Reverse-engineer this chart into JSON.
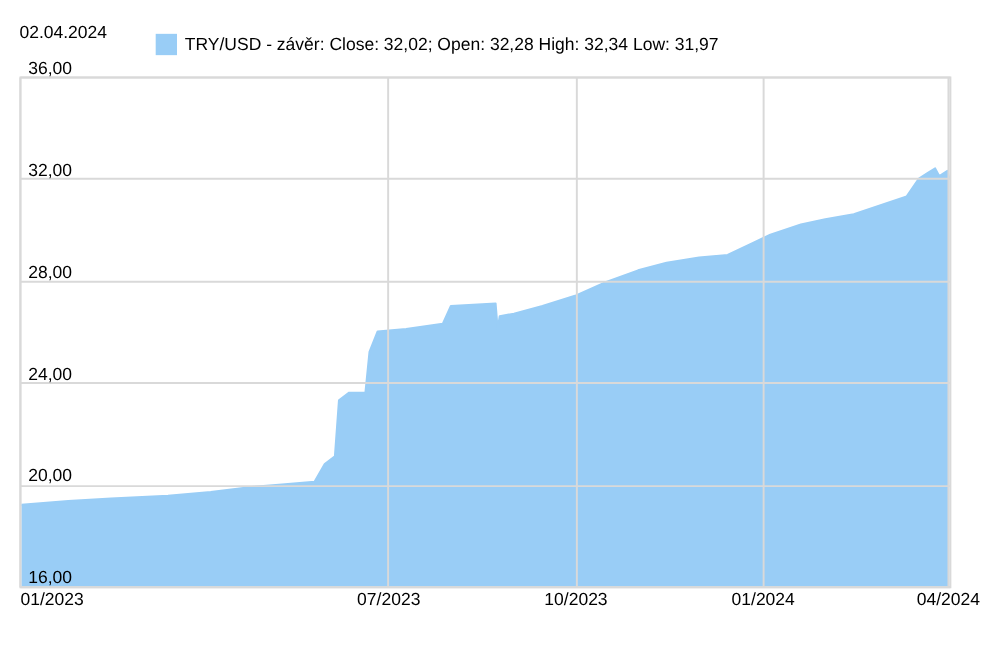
{
  "chart_data": {
    "type": "area",
    "title": "02.04.2024",
    "x": [
      "2023-01-02",
      "2023-01-25",
      "2023-02-15",
      "2023-03-15",
      "2023-04-05",
      "2023-04-25",
      "2023-05-10",
      "2023-05-26",
      "2023-05-31",
      "2023-06-05",
      "2023-06-07",
      "2023-06-12",
      "2023-06-20",
      "2023-06-22",
      "2023-06-26",
      "2023-07-10",
      "2023-07-28",
      "2023-08-01",
      "2023-08-23",
      "2023-08-24",
      "2023-08-25",
      "2023-09-01",
      "2023-09-15",
      "2023-10-01",
      "2023-10-15",
      "2023-11-01",
      "2023-11-15",
      "2023-12-01",
      "2023-12-15",
      "2023-12-28",
      "2024-01-05",
      "2024-01-20",
      "2024-02-01",
      "2024-02-15",
      "2024-03-01",
      "2024-03-12",
      "2024-03-18",
      "2024-03-22",
      "2024-03-26",
      "2024-03-28",
      "2024-04-01",
      "2024-04-02"
    ],
    "series": [
      {
        "name": "TRY/USD - závěr: Close: 32,02; Open: 32,28 High: 32,34 Low: 31,97",
        "color": "#99cdf6",
        "values": [
          19.2,
          19.35,
          19.45,
          19.55,
          19.7,
          19.9,
          20.0,
          20.1,
          20.8,
          21.1,
          23.3,
          23.6,
          23.6,
          25.2,
          26.0,
          26.1,
          26.3,
          27.0,
          27.1,
          26.1,
          26.6,
          26.7,
          27.0,
          27.4,
          27.9,
          28.4,
          28.7,
          28.9,
          29.0,
          29.5,
          29.8,
          30.2,
          30.4,
          30.6,
          31.0,
          31.3,
          32.0,
          32.2,
          32.4,
          32.1,
          32.3,
          32.02
        ]
      }
    ],
    "xlim": [
      "2023-01-01",
      "2024-04-02"
    ],
    "xticks": [
      {
        "value": "2023-01-01",
        "label": "01/2023"
      },
      {
        "value": "2023-07-01",
        "label": "07/2023"
      },
      {
        "value": "2023-10-01",
        "label": "10/2023"
      },
      {
        "value": "2024-01-01",
        "label": "01/2024"
      },
      {
        "value": "2024-04-01",
        "label": "04/2024"
      }
    ],
    "ylim": [
      16,
      36
    ],
    "yticks": [
      {
        "value": 16,
        "label": "16,00"
      },
      {
        "value": 20,
        "label": "20,00"
      },
      {
        "value": 24,
        "label": "24,00"
      },
      {
        "value": 28,
        "label": "28,00"
      },
      {
        "value": 32,
        "label": "32,00"
      },
      {
        "value": 36,
        "label": "36,00"
      }
    ],
    "grid": true,
    "legend": "top left"
  }
}
